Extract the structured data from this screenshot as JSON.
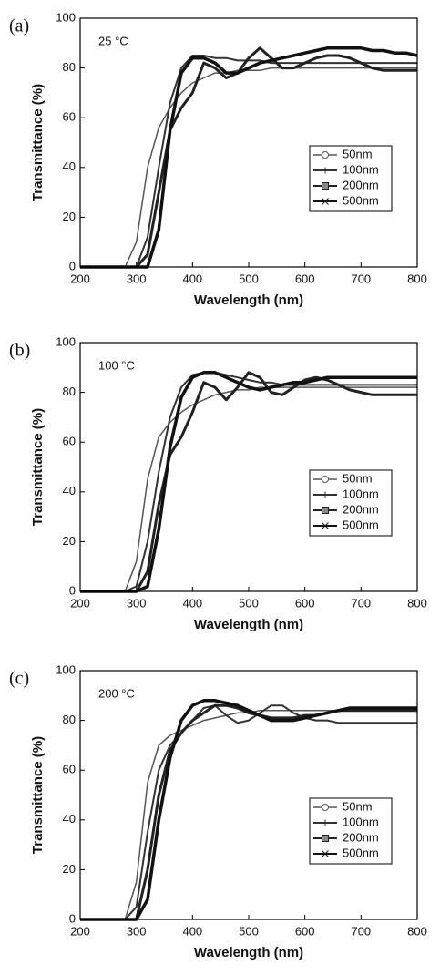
{
  "chart_data": [
    {
      "type": "line",
      "panel_label": "(a)",
      "annotation": "25 °C",
      "x_label": "Wavelength (nm)",
      "y_label": "Transmittance (%)",
      "xlim": [
        200,
        800
      ],
      "xticks": [
        200,
        300,
        400,
        500,
        600,
        700,
        800
      ],
      "ylim": [
        0,
        100
      ],
      "yticks": [
        0,
        20,
        40,
        60,
        80,
        100
      ],
      "legend": "right",
      "x": [
        200,
        220,
        240,
        260,
        280,
        300,
        320,
        340,
        360,
        380,
        400,
        420,
        440,
        460,
        480,
        500,
        520,
        540,
        560,
        580,
        600,
        620,
        640,
        660,
        680,
        700,
        720,
        740,
        760,
        780,
        800
      ],
      "series": [
        {
          "name": "50nm",
          "color": "#555555",
          "width": 1.5,
          "marker": "circle",
          "values": [
            0,
            0,
            0,
            0,
            0,
            10,
            40,
            56,
            64,
            70,
            74,
            76,
            78,
            78,
            79,
            79,
            79,
            80,
            80,
            80,
            80,
            80,
            80,
            80,
            80,
            80,
            80,
            80,
            80,
            80,
            80
          ]
        },
        {
          "name": "100nm",
          "color": "#333333",
          "width": 2,
          "marker": "plus",
          "values": [
            0,
            0,
            0,
            0,
            0,
            0,
            12,
            40,
            66,
            80,
            85,
            85,
            84,
            84,
            83,
            83,
            83,
            82,
            82,
            82,
            82,
            82,
            82,
            82,
            82,
            82,
            82,
            82,
            82,
            82,
            82
          ]
        },
        {
          "name": "200nm",
          "color": "#222222",
          "width": 3,
          "marker": "square",
          "values": [
            0,
            0,
            0,
            0,
            0,
            0,
            5,
            30,
            55,
            64,
            70,
            82,
            80,
            76,
            78,
            84,
            88,
            84,
            80,
            80,
            82,
            84,
            85,
            85,
            84,
            82,
            80,
            79,
            79,
            79,
            79
          ]
        },
        {
          "name": "500nm",
          "color": "#111111",
          "width": 3.5,
          "marker": "x",
          "values": [
            0,
            0,
            0,
            0,
            0,
            0,
            0,
            15,
            55,
            78,
            84,
            84,
            82,
            78,
            78,
            80,
            82,
            83,
            84,
            85,
            86,
            87,
            88,
            88,
            88,
            88,
            87,
            87,
            86,
            86,
            85
          ]
        }
      ]
    },
    {
      "type": "line",
      "panel_label": "(b)",
      "annotation": "100 °C",
      "x_label": "Wavelength (nm)",
      "y_label": "Transmittance (%)",
      "xlim": [
        200,
        800
      ],
      "xticks": [
        200,
        300,
        400,
        500,
        600,
        700,
        800
      ],
      "ylim": [
        0,
        100
      ],
      "yticks": [
        0,
        20,
        40,
        60,
        80,
        100
      ],
      "legend": "right",
      "x": [
        200,
        220,
        240,
        260,
        280,
        300,
        320,
        340,
        360,
        380,
        400,
        420,
        440,
        460,
        480,
        500,
        520,
        540,
        560,
        580,
        600,
        620,
        640,
        660,
        680,
        700,
        720,
        740,
        760,
        780,
        800
      ],
      "series": [
        {
          "name": "50nm",
          "color": "#555555",
          "width": 1.5,
          "marker": "circle",
          "values": [
            0,
            0,
            0,
            0,
            0,
            12,
            45,
            62,
            68,
            72,
            75,
            77,
            79,
            80,
            81,
            81,
            82,
            82,
            82,
            82,
            82,
            82,
            82,
            82,
            82,
            82,
            82,
            82,
            82,
            82,
            82
          ]
        },
        {
          "name": "100nm",
          "color": "#333333",
          "width": 2,
          "marker": "plus",
          "values": [
            0,
            0,
            0,
            0,
            0,
            2,
            20,
            48,
            70,
            82,
            87,
            88,
            88,
            87,
            86,
            85,
            84,
            84,
            83,
            83,
            83,
            83,
            83,
            83,
            83,
            83,
            83,
            83,
            83,
            83,
            83
          ]
        },
        {
          "name": "200nm",
          "color": "#222222",
          "width": 3,
          "marker": "square",
          "values": [
            0,
            0,
            0,
            0,
            0,
            0,
            8,
            35,
            55,
            62,
            72,
            84,
            82,
            77,
            82,
            88,
            86,
            80,
            79,
            82,
            85,
            86,
            85,
            83,
            81,
            80,
            79,
            79,
            79,
            79,
            79
          ]
        },
        {
          "name": "500nm",
          "color": "#111111",
          "width": 3.5,
          "marker": "x",
          "values": [
            0,
            0,
            0,
            0,
            0,
            0,
            2,
            25,
            58,
            78,
            86,
            88,
            88,
            86,
            84,
            82,
            81,
            82,
            83,
            84,
            84,
            85,
            86,
            86,
            86,
            86,
            86,
            86,
            86,
            86,
            86
          ]
        }
      ]
    },
    {
      "type": "line",
      "panel_label": "(c)",
      "annotation": "200 °C",
      "x_label": "Wavelength (nm)",
      "y_label": "Transmittance (%)",
      "xlim": [
        200,
        800
      ],
      "xticks": [
        200,
        300,
        400,
        500,
        600,
        700,
        800
      ],
      "ylim": [
        0,
        100
      ],
      "yticks": [
        0,
        20,
        40,
        60,
        80,
        100
      ],
      "legend": "right",
      "x": [
        200,
        220,
        240,
        260,
        280,
        300,
        320,
        340,
        360,
        380,
        400,
        420,
        440,
        460,
        480,
        500,
        520,
        540,
        560,
        580,
        600,
        620,
        640,
        660,
        680,
        700,
        720,
        740,
        760,
        780,
        800
      ],
      "series": [
        {
          "name": "50nm",
          "color": "#555555",
          "width": 1.5,
          "marker": "circle",
          "values": [
            0,
            0,
            0,
            0,
            0,
            15,
            55,
            70,
            74,
            76,
            78,
            80,
            81,
            82,
            83,
            83,
            84,
            84,
            84,
            84,
            84,
            84,
            84,
            84,
            84,
            84,
            84,
            84,
            84,
            84,
            84
          ]
        },
        {
          "name": "100nm",
          "color": "#333333",
          "width": 2,
          "marker": "plus",
          "values": [
            0,
            0,
            0,
            0,
            0,
            5,
            35,
            60,
            70,
            75,
            80,
            85,
            86,
            82,
            79,
            80,
            83,
            86,
            86,
            83,
            81,
            80,
            80,
            79,
            79,
            79,
            79,
            79,
            79,
            79,
            79
          ]
        },
        {
          "name": "200nm",
          "color": "#222222",
          "width": 3,
          "marker": "square",
          "values": [
            0,
            0,
            0,
            0,
            0,
            0,
            20,
            50,
            68,
            75,
            80,
            83,
            86,
            86,
            85,
            83,
            82,
            81,
            81,
            81,
            82,
            82,
            83,
            84,
            84,
            84,
            84,
            84,
            84,
            84,
            84
          ]
        },
        {
          "name": "500nm",
          "color": "#111111",
          "width": 3.5,
          "marker": "x",
          "values": [
            0,
            0,
            0,
            0,
            0,
            0,
            8,
            40,
            65,
            80,
            86,
            88,
            88,
            87,
            86,
            84,
            82,
            80,
            80,
            80,
            81,
            82,
            83,
            84,
            85,
            85,
            85,
            85,
            85,
            85,
            85
          ]
        }
      ]
    }
  ]
}
